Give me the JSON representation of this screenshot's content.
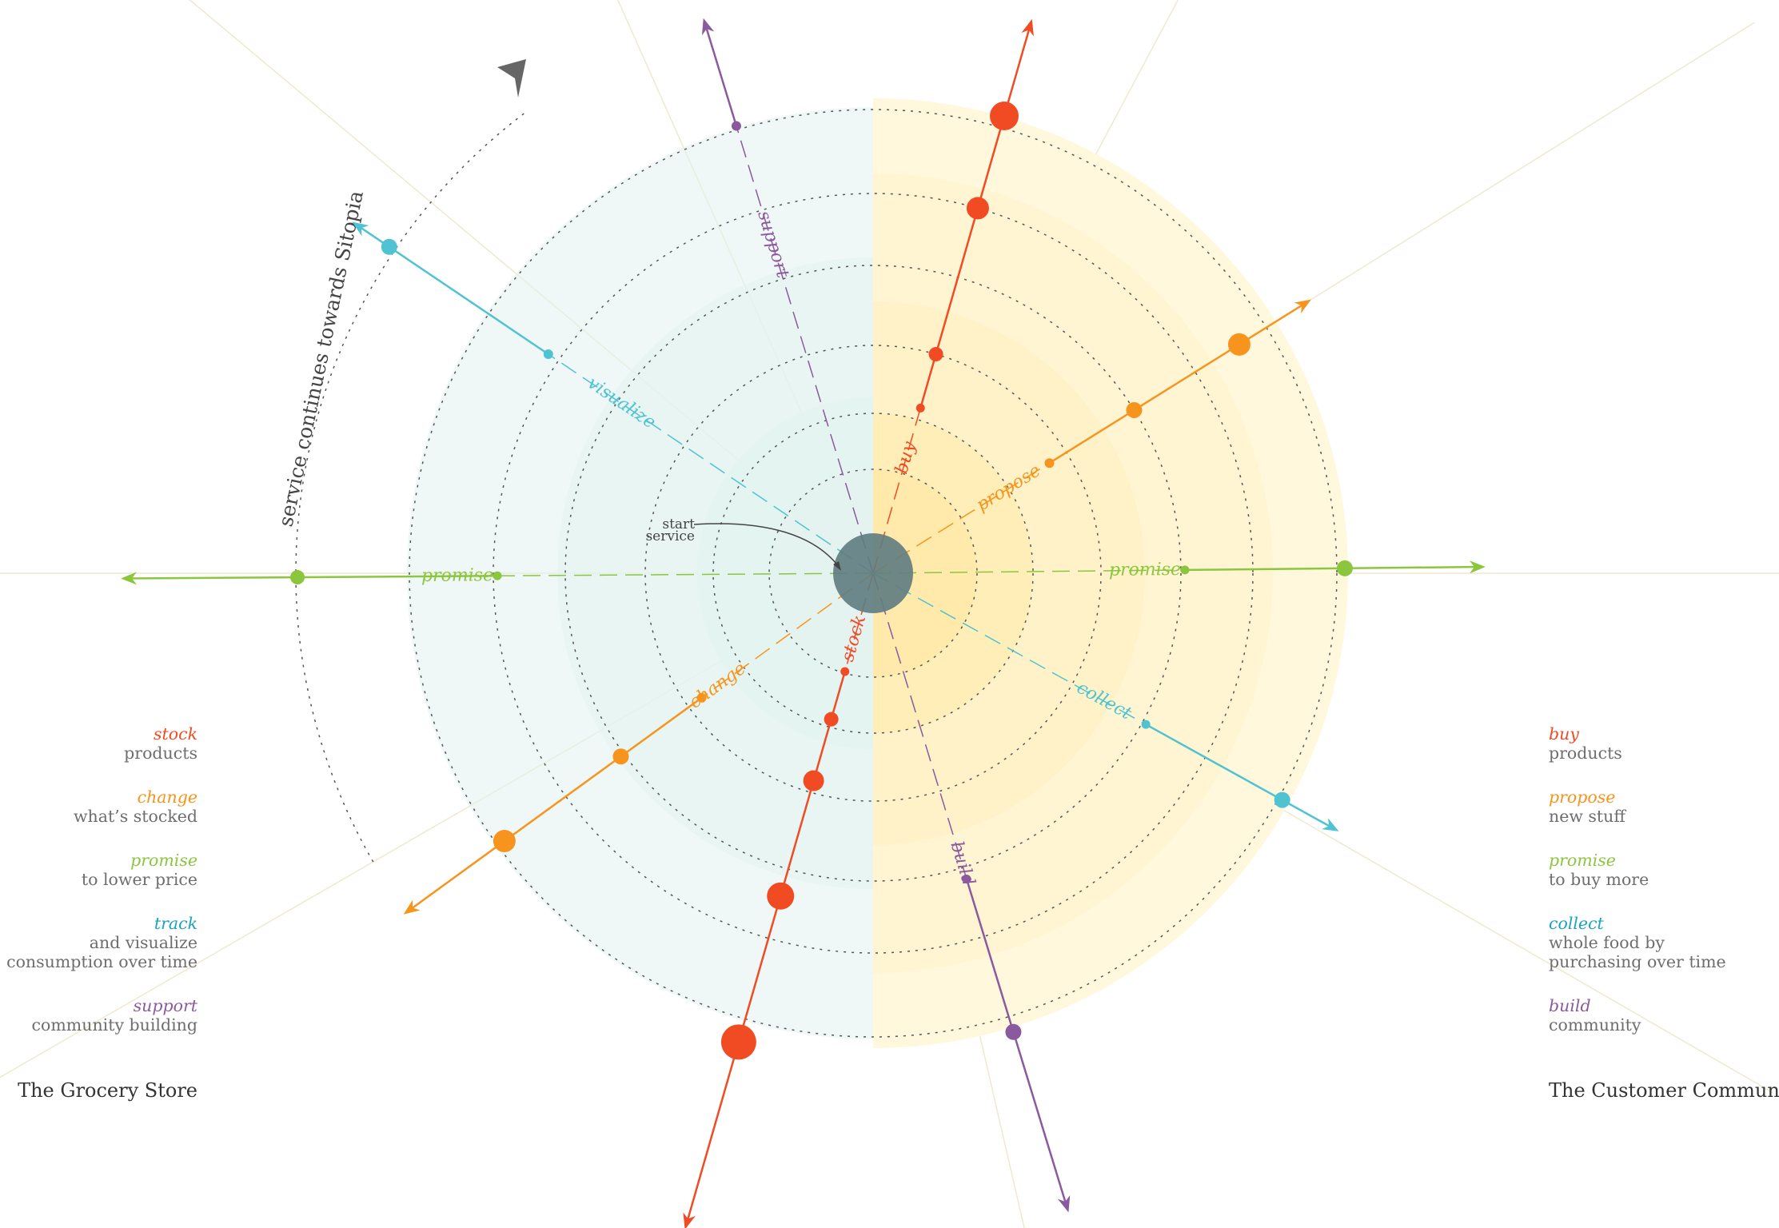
{
  "colors": {
    "stock": "#f04b23",
    "change": "#f7941d",
    "promise": "#8cc63f",
    "track": "#1ba3bd",
    "visualize": "#4fc3d1",
    "support": "#8b5a9e",
    "left_bg": "#e8f5f3",
    "right_bg": "#fff7d6",
    "center": "#6b8588"
  },
  "center": {
    "label_line1": "start",
    "label_line2": "service"
  },
  "arc_label": "service continues towards Sitopia",
  "axes": [
    {
      "name": "support",
      "label": "support",
      "color": "#8b5a9e"
    },
    {
      "name": "buy",
      "label": "buy",
      "color": "#f04b23"
    },
    {
      "name": "propose",
      "label": "propose",
      "color": "#f7941d"
    },
    {
      "name": "promise-right",
      "label": "promise",
      "color": "#8cc63f"
    },
    {
      "name": "collect",
      "label": "collect",
      "color": "#4fc3d1"
    },
    {
      "name": "build",
      "label": "build",
      "color": "#8b5a9e"
    },
    {
      "name": "stock",
      "label": "stock",
      "color": "#f04b23"
    },
    {
      "name": "change",
      "label": "change",
      "color": "#f7941d"
    },
    {
      "name": "promise-left",
      "label": "promise",
      "color": "#8cc63f"
    },
    {
      "name": "visualize",
      "label": "visualize",
      "color": "#4fc3d1"
    }
  ],
  "legend_left": {
    "title": "The Grocery Store",
    "items": [
      {
        "verb": "stock",
        "desc": "products",
        "color": "#f04b23"
      },
      {
        "verb": "change",
        "desc": "what’s stocked",
        "color": "#f7941d"
      },
      {
        "verb": "promise",
        "desc": "to lower price",
        "color": "#8cc63f"
      },
      {
        "verb": "track",
        "desc": "and visualize\nconsumption over time",
        "color": "#1ba3bd"
      },
      {
        "verb": "support",
        "desc": "community building",
        "color": "#8b5a9e"
      }
    ]
  },
  "legend_right": {
    "title": "The Customer Community",
    "items": [
      {
        "verb": "buy",
        "desc": "products",
        "color": "#f04b23"
      },
      {
        "verb": "propose",
        "desc": "new stuff",
        "color": "#f7941d"
      },
      {
        "verb": "promise",
        "desc": "to buy more",
        "color": "#8cc63f"
      },
      {
        "verb": "collect",
        "desc": "whole food by\npurchasing over time",
        "color": "#1ba3bd"
      },
      {
        "verb": "build",
        "desc": "community",
        "color": "#8b5a9e"
      }
    ]
  }
}
